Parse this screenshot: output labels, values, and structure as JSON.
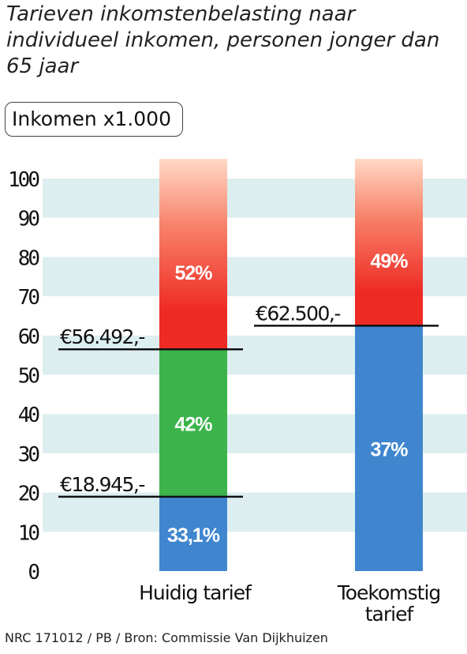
{
  "title": "Tarieven inkomstenbelasting naar individueel inkomen, personen jonger dan 65 jaar",
  "unit_label": "Inkomen x1.000",
  "credit": "NRC 171012 / PB / Bron: Commissie Van Dijkhuizen",
  "colors": {
    "band": "#ddeef0",
    "blue": "#3f86cf",
    "green": "#3cb44b",
    "red": "#ee2a24",
    "top_fade": "#ffd9c6",
    "line": "#111111"
  },
  "chart_data": {
    "type": "bar",
    "ylim": [
      0,
      100
    ],
    "yticks": [
      0,
      10,
      20,
      30,
      40,
      50,
      60,
      70,
      80,
      90,
      100
    ],
    "bars": [
      {
        "category_lines": [
          "Huidig tarief"
        ],
        "segments": [
          {
            "from": 0,
            "to": 18.945,
            "rate": "33,1%",
            "color": "blue"
          },
          {
            "from": 18.945,
            "to": 56.492,
            "rate": "42%",
            "color": "green"
          },
          {
            "from": 56.492,
            "to": 105,
            "rate": "52%",
            "color": "red"
          }
        ],
        "thresholds": [
          {
            "value": 18.945,
            "label": "€18.945,-"
          },
          {
            "value": 56.492,
            "label": "€56.492,-"
          }
        ]
      },
      {
        "category_lines": [
          "Toekomstig",
          "tarief"
        ],
        "segments": [
          {
            "from": 0,
            "to": 62.5,
            "rate": "37%",
            "color": "blue"
          },
          {
            "from": 62.5,
            "to": 105,
            "rate": "49%",
            "color": "red"
          }
        ],
        "thresholds": [
          {
            "value": 62.5,
            "label": "€62.500,-"
          }
        ]
      }
    ]
  }
}
